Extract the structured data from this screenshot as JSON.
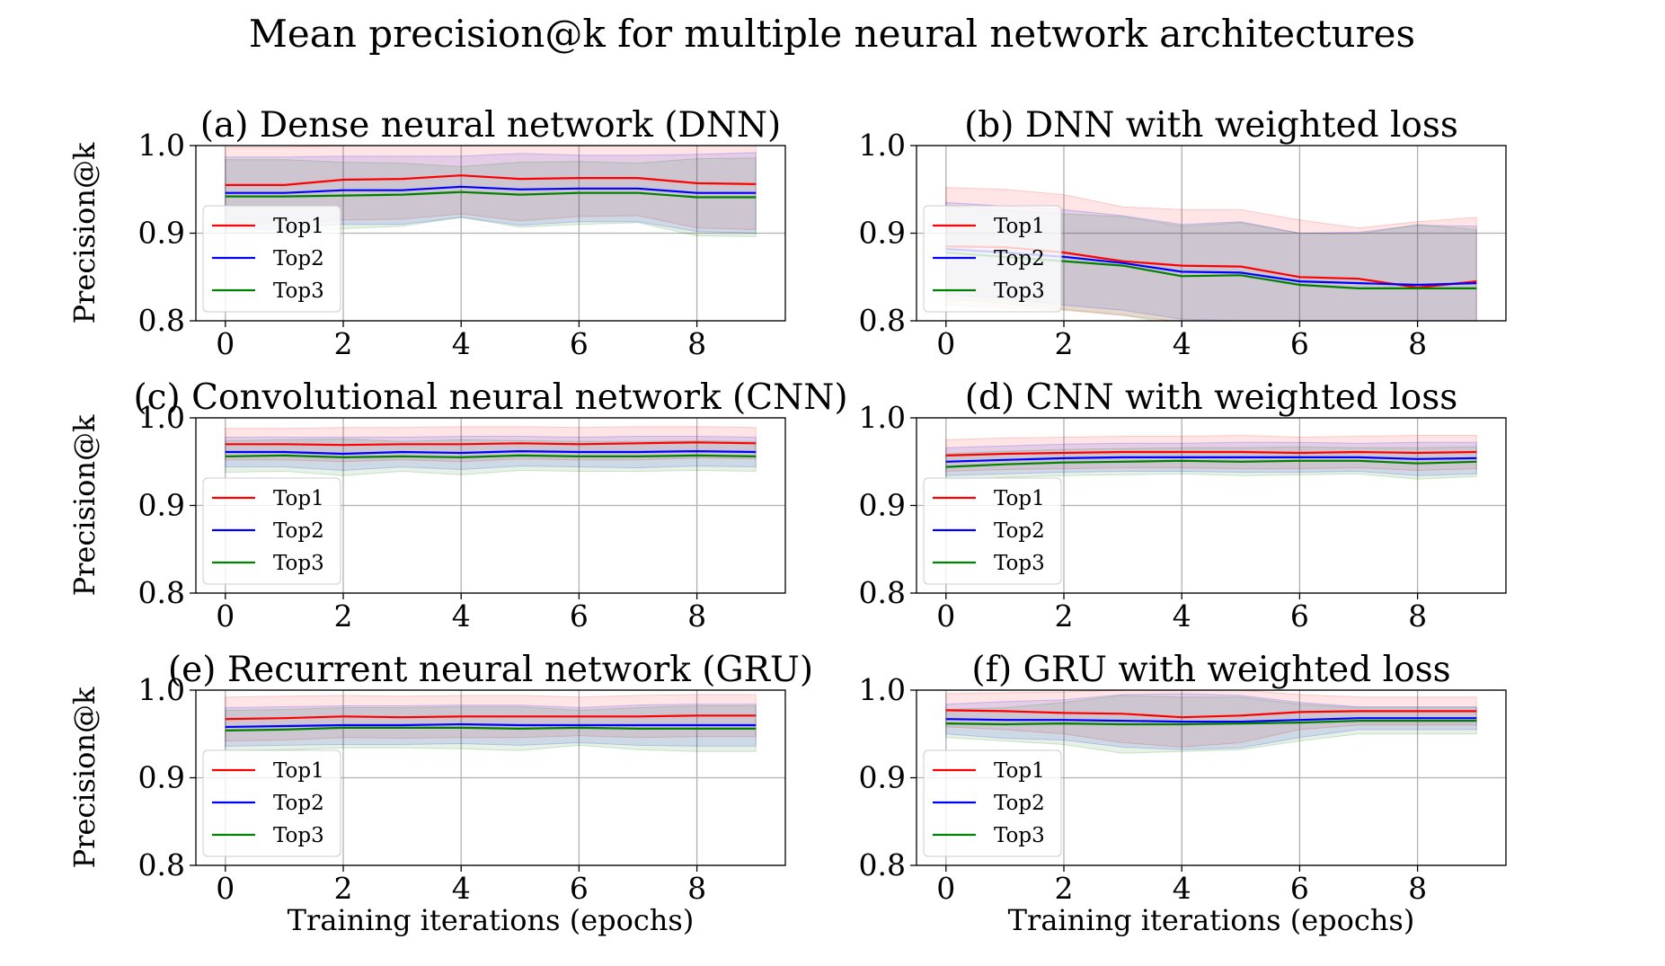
{
  "figure": {
    "suptitle": "Mean precision@k for multiple neural network architectures"
  },
  "colors": {
    "Top1": "#ff0000",
    "Top2": "#0000ff",
    "Top3": "#008000",
    "grid": "#b0b0b0",
    "axes": "#000000"
  },
  "chart_data": [
    {
      "type": "line",
      "title": "(a) Dense neural network (DNN)",
      "xlabel": "",
      "ylabel": "Precision@k",
      "x": [
        0,
        1,
        2,
        3,
        4,
        5,
        6,
        7,
        8,
        9
      ],
      "xlim": [
        -0.5,
        9.5
      ],
      "ylim": [
        0.8,
        1.0
      ],
      "xticks": [
        0,
        2,
        4,
        6,
        8
      ],
      "yticks": [
        0.8,
        0.9,
        1.0
      ],
      "xtick_labels": [
        "0",
        "2",
        "4",
        "6",
        "8"
      ],
      "ytick_labels": [
        "0.8",
        "0.9",
        "1.0"
      ],
      "grid": true,
      "legend": "center-left",
      "series": [
        {
          "name": "Top1",
          "values": [
            0.955,
            0.955,
            0.961,
            0.962,
            0.966,
            0.962,
            0.963,
            0.963,
            0.957,
            0.956
          ],
          "lower": [
            0.912,
            0.912,
            0.915,
            0.916,
            0.922,
            0.914,
            0.919,
            0.92,
            0.906,
            0.904
          ],
          "upper": [
            0.998,
            0.998,
            1.0,
            1.0,
            1.0,
            1.0,
            1.0,
            1.0,
            1.0,
            1.0
          ]
        },
        {
          "name": "Top2",
          "values": [
            0.946,
            0.946,
            0.949,
            0.949,
            0.953,
            0.95,
            0.951,
            0.951,
            0.946,
            0.946
          ],
          "lower": [
            0.905,
            0.905,
            0.91,
            0.91,
            0.918,
            0.909,
            0.913,
            0.913,
            0.902,
            0.9
          ],
          "upper": [
            0.987,
            0.987,
            0.988,
            0.988,
            0.988,
            0.991,
            0.989,
            0.989,
            0.99,
            0.992
          ]
        },
        {
          "name": "Top3",
          "values": [
            0.942,
            0.942,
            0.943,
            0.944,
            0.947,
            0.944,
            0.946,
            0.946,
            0.941,
            0.941
          ],
          "lower": [
            0.9,
            0.9,
            0.905,
            0.908,
            0.918,
            0.907,
            0.91,
            0.912,
            0.897,
            0.896
          ],
          "upper": [
            0.984,
            0.984,
            0.981,
            0.98,
            0.976,
            0.981,
            0.982,
            0.98,
            0.985,
            0.986
          ]
        }
      ]
    },
    {
      "type": "line",
      "title": "(b) DNN with weighted loss",
      "xlabel": "",
      "ylabel": "",
      "x": [
        0,
        1,
        2,
        3,
        4,
        5,
        6,
        7,
        8,
        9
      ],
      "xlim": [
        -0.5,
        9.5
      ],
      "ylim": [
        0.8,
        1.0
      ],
      "xticks": [
        0,
        2,
        4,
        6,
        8
      ],
      "yticks": [
        0.8,
        0.9,
        1.0
      ],
      "xtick_labels": [
        "0",
        "2",
        "4",
        "6",
        "8"
      ],
      "ytick_labels": [
        "0.8",
        "0.9",
        "1.0"
      ],
      "grid": true,
      "legend": "center-left",
      "series": [
        {
          "name": "Top1",
          "values": [
            0.885,
            0.884,
            0.878,
            0.868,
            0.863,
            0.862,
            0.85,
            0.848,
            0.838,
            0.845
          ],
          "lower": [
            0.818,
            0.815,
            0.812,
            0.806,
            0.799,
            0.797,
            0.785,
            0.79,
            0.762,
            0.772
          ],
          "upper": [
            0.952,
            0.95,
            0.944,
            0.93,
            0.927,
            0.927,
            0.915,
            0.906,
            0.913,
            0.918
          ]
        },
        {
          "name": "Top2",
          "values": [
            0.882,
            0.878,
            0.873,
            0.866,
            0.856,
            0.855,
            0.845,
            0.843,
            0.841,
            0.843
          ],
          "lower": [
            0.83,
            0.826,
            0.818,
            0.812,
            0.802,
            0.8,
            0.79,
            0.785,
            0.77,
            0.778
          ],
          "upper": [
            0.935,
            0.931,
            0.927,
            0.92,
            0.91,
            0.913,
            0.9,
            0.901,
            0.909,
            0.908
          ]
        },
        {
          "name": "Top3",
          "values": [
            0.878,
            0.873,
            0.868,
            0.863,
            0.851,
            0.852,
            0.841,
            0.837,
            0.837,
            0.837
          ],
          "lower": [
            0.825,
            0.82,
            0.813,
            0.807,
            0.794,
            0.793,
            0.782,
            0.775,
            0.764,
            0.77
          ],
          "upper": [
            0.931,
            0.926,
            0.922,
            0.919,
            0.908,
            0.912,
            0.9,
            0.899,
            0.91,
            0.904
          ]
        }
      ]
    },
    {
      "type": "line",
      "title": "(c) Convolutional neural network (CNN)",
      "xlabel": "",
      "ylabel": "Precision@k",
      "x": [
        0,
        1,
        2,
        3,
        4,
        5,
        6,
        7,
        8,
        9
      ],
      "xlim": [
        -0.5,
        9.5
      ],
      "ylim": [
        0.8,
        1.0
      ],
      "xticks": [
        0,
        2,
        4,
        6,
        8
      ],
      "yticks": [
        0.8,
        0.9,
        1.0
      ],
      "xtick_labels": [
        "0",
        "2",
        "4",
        "6",
        "8"
      ],
      "ytick_labels": [
        "0.8",
        "0.9",
        "1.0"
      ],
      "grid": true,
      "legend": "center-left",
      "series": [
        {
          "name": "Top1",
          "values": [
            0.97,
            0.97,
            0.969,
            0.97,
            0.97,
            0.971,
            0.97,
            0.971,
            0.972,
            0.971
          ],
          "lower": [
            0.952,
            0.952,
            0.95,
            0.952,
            0.95,
            0.953,
            0.952,
            0.952,
            0.954,
            0.953
          ],
          "upper": [
            0.988,
            0.988,
            0.989,
            0.989,
            0.99,
            0.99,
            0.989,
            0.99,
            0.99,
            0.989
          ]
        },
        {
          "name": "Top2",
          "values": [
            0.961,
            0.961,
            0.959,
            0.961,
            0.96,
            0.962,
            0.961,
            0.961,
            0.962,
            0.961
          ],
          "lower": [
            0.944,
            0.944,
            0.94,
            0.944,
            0.941,
            0.945,
            0.944,
            0.943,
            0.945,
            0.944
          ],
          "upper": [
            0.978,
            0.978,
            0.978,
            0.978,
            0.979,
            0.979,
            0.978,
            0.979,
            0.979,
            0.978
          ]
        },
        {
          "name": "Top3",
          "values": [
            0.956,
            0.957,
            0.955,
            0.956,
            0.955,
            0.957,
            0.956,
            0.956,
            0.957,
            0.956
          ],
          "lower": [
            0.938,
            0.939,
            0.934,
            0.939,
            0.935,
            0.94,
            0.939,
            0.939,
            0.94,
            0.939
          ],
          "upper": [
            0.974,
            0.975,
            0.976,
            0.973,
            0.975,
            0.974,
            0.973,
            0.973,
            0.974,
            0.973
          ]
        }
      ]
    },
    {
      "type": "line",
      "title": "(d) CNN with weighted loss",
      "xlabel": "",
      "ylabel": "",
      "x": [
        0,
        1,
        2,
        3,
        4,
        5,
        6,
        7,
        8,
        9
      ],
      "xlim": [
        -0.5,
        9.5
      ],
      "ylim": [
        0.8,
        1.0
      ],
      "xticks": [
        0,
        2,
        4,
        6,
        8
      ],
      "yticks": [
        0.8,
        0.9,
        1.0
      ],
      "xtick_labels": [
        "0",
        "2",
        "4",
        "6",
        "8"
      ],
      "ytick_labels": [
        "0.8",
        "0.9",
        "1.0"
      ],
      "grid": true,
      "legend": "center-left",
      "series": [
        {
          "name": "Top1",
          "values": [
            0.957,
            0.959,
            0.96,
            0.961,
            0.961,
            0.961,
            0.96,
            0.961,
            0.96,
            0.961
          ],
          "lower": [
            0.939,
            0.941,
            0.942,
            0.943,
            0.943,
            0.942,
            0.942,
            0.943,
            0.94,
            0.942
          ],
          "upper": [
            0.975,
            0.977,
            0.978,
            0.979,
            0.979,
            0.98,
            0.978,
            0.979,
            0.98,
            0.98
          ]
        },
        {
          "name": "Top2",
          "values": [
            0.95,
            0.952,
            0.954,
            0.955,
            0.955,
            0.955,
            0.955,
            0.955,
            0.953,
            0.954
          ],
          "lower": [
            0.934,
            0.936,
            0.938,
            0.939,
            0.939,
            0.938,
            0.938,
            0.939,
            0.934,
            0.936
          ],
          "upper": [
            0.966,
            0.968,
            0.97,
            0.971,
            0.971,
            0.972,
            0.972,
            0.971,
            0.972,
            0.972
          ]
        },
        {
          "name": "Top3",
          "values": [
            0.944,
            0.947,
            0.949,
            0.95,
            0.951,
            0.95,
            0.951,
            0.951,
            0.948,
            0.95
          ],
          "lower": [
            0.929,
            0.932,
            0.934,
            0.935,
            0.936,
            0.934,
            0.935,
            0.936,
            0.93,
            0.933
          ],
          "upper": [
            0.959,
            0.962,
            0.964,
            0.965,
            0.966,
            0.966,
            0.967,
            0.966,
            0.966,
            0.967
          ]
        }
      ]
    },
    {
      "type": "line",
      "title": "(e) Recurrent neural network (GRU)",
      "xlabel": "Training iterations (epochs)",
      "ylabel": "Precision@k",
      "x": [
        0,
        1,
        2,
        3,
        4,
        5,
        6,
        7,
        8,
        9
      ],
      "xlim": [
        -0.5,
        9.5
      ],
      "ylim": [
        0.8,
        1.0
      ],
      "xticks": [
        0,
        2,
        4,
        6,
        8
      ],
      "yticks": [
        0.8,
        0.9,
        1.0
      ],
      "xtick_labels": [
        "0",
        "2",
        "4",
        "6",
        "8"
      ],
      "ytick_labels": [
        "0.8",
        "0.9",
        "1.0"
      ],
      "grid": true,
      "legend": "center-left",
      "series": [
        {
          "name": "Top1",
          "values": [
            0.967,
            0.968,
            0.97,
            0.969,
            0.97,
            0.97,
            0.97,
            0.97,
            0.971,
            0.971
          ],
          "lower": [
            0.942,
            0.943,
            0.946,
            0.945,
            0.946,
            0.946,
            0.948,
            0.946,
            0.947,
            0.947
          ],
          "upper": [
            0.992,
            0.993,
            0.994,
            0.993,
            0.994,
            0.994,
            0.992,
            0.994,
            0.995,
            0.995
          ]
        },
        {
          "name": "Top2",
          "values": [
            0.958,
            0.959,
            0.96,
            0.96,
            0.961,
            0.96,
            0.96,
            0.96,
            0.96,
            0.96
          ],
          "lower": [
            0.936,
            0.937,
            0.938,
            0.938,
            0.939,
            0.937,
            0.94,
            0.937,
            0.936,
            0.936
          ],
          "upper": [
            0.98,
            0.981,
            0.982,
            0.982,
            0.983,
            0.983,
            0.98,
            0.983,
            0.984,
            0.984
          ]
        },
        {
          "name": "Top3",
          "values": [
            0.954,
            0.955,
            0.957,
            0.957,
            0.957,
            0.956,
            0.957,
            0.956,
            0.956,
            0.956
          ],
          "lower": [
            0.931,
            0.932,
            0.934,
            0.934,
            0.933,
            0.931,
            0.937,
            0.932,
            0.93,
            0.93
          ],
          "upper": [
            0.977,
            0.978,
            0.98,
            0.98,
            0.981,
            0.981,
            0.977,
            0.98,
            0.982,
            0.982
          ]
        }
      ]
    },
    {
      "type": "line",
      "title": "(f) GRU with weighted loss",
      "xlabel": "Training iterations (epochs)",
      "ylabel": "",
      "x": [
        0,
        1,
        2,
        3,
        4,
        5,
        6,
        7,
        8,
        9
      ],
      "xlim": [
        -0.5,
        9.5
      ],
      "ylim": [
        0.8,
        1.0
      ],
      "xticks": [
        0,
        2,
        4,
        6,
        8
      ],
      "yticks": [
        0.8,
        0.9,
        1.0
      ],
      "xtick_labels": [
        "0",
        "2",
        "4",
        "6",
        "8"
      ],
      "ytick_labels": [
        "0.8",
        "0.9",
        "1.0"
      ],
      "grid": true,
      "legend": "center-left",
      "series": [
        {
          "name": "Top1",
          "values": [
            0.977,
            0.976,
            0.974,
            0.973,
            0.969,
            0.971,
            0.975,
            0.976,
            0.976,
            0.976
          ],
          "lower": [
            0.958,
            0.955,
            0.95,
            0.94,
            0.935,
            0.94,
            0.955,
            0.96,
            0.96,
            0.96
          ],
          "upper": [
            0.996,
            0.997,
            0.998,
            1.0,
            1.0,
            1.0,
            0.995,
            0.992,
            0.992,
            0.992
          ]
        },
        {
          "name": "Top2",
          "values": [
            0.967,
            0.966,
            0.966,
            0.965,
            0.964,
            0.964,
            0.966,
            0.968,
            0.968,
            0.968
          ],
          "lower": [
            0.95,
            0.945,
            0.943,
            0.935,
            0.932,
            0.934,
            0.946,
            0.955,
            0.955,
            0.955
          ],
          "upper": [
            0.984,
            0.987,
            0.989,
            0.995,
            0.996,
            0.994,
            0.986,
            0.981,
            0.981,
            0.981
          ]
        },
        {
          "name": "Top3",
          "values": [
            0.962,
            0.961,
            0.962,
            0.961,
            0.961,
            0.962,
            0.963,
            0.965,
            0.965,
            0.965
          ],
          "lower": [
            0.946,
            0.942,
            0.938,
            0.928,
            0.93,
            0.932,
            0.942,
            0.95,
            0.95,
            0.95
          ],
          "upper": [
            0.978,
            0.98,
            0.986,
            0.994,
            0.992,
            0.992,
            0.984,
            0.98,
            0.98,
            0.98
          ]
        }
      ]
    }
  ]
}
